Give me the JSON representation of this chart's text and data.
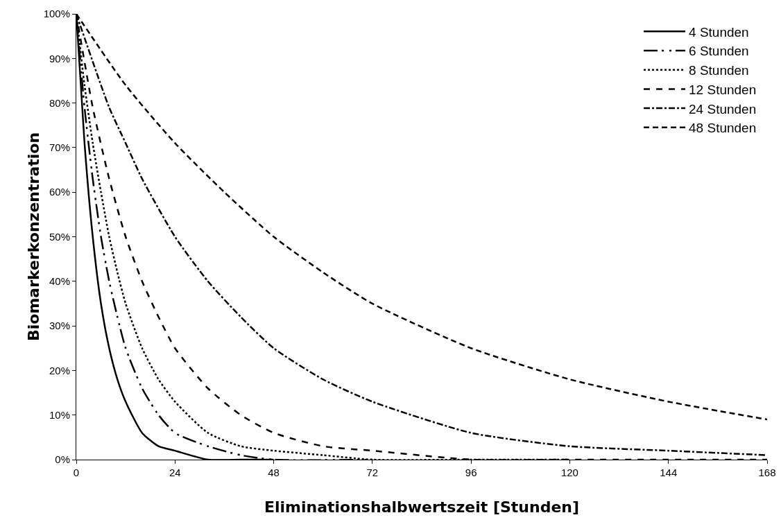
{
  "chart_data": {
    "type": "line",
    "xlabel": "Eliminationshalbwertszeit [Stunden]",
    "ylabel": "Biomarkerkonzentration",
    "series": [
      {
        "name": "4 Stunden",
        "color": "#000000",
        "line_style": "solid",
        "x": [
          0,
          2,
          4,
          6,
          8,
          10,
          12,
          16,
          20,
          24,
          32,
          40,
          48
        ],
        "values": [
          100,
          71,
          50,
          35,
          25,
          18,
          13,
          6,
          3,
          2,
          0,
          0,
          0
        ]
      },
      {
        "name": "6 Stunden",
        "color": "#000000",
        "line_style": "longdashdotdot",
        "x": [
          0,
          2,
          4,
          6,
          8,
          10,
          12,
          16,
          20,
          24,
          32,
          40,
          48,
          72
        ],
        "values": [
          100,
          79,
          63,
          50,
          40,
          32,
          25,
          16,
          10,
          6,
          3,
          1,
          0,
          0
        ]
      },
      {
        "name": "8 Stunden",
        "color": "#000000",
        "line_style": "dotted",
        "x": [
          0,
          2,
          4,
          6,
          8,
          10,
          12,
          16,
          20,
          24,
          32,
          40,
          48,
          60,
          72,
          96,
          120
        ],
        "values": [
          100,
          84,
          71,
          60,
          50,
          42,
          35,
          25,
          18,
          13,
          6,
          3,
          2,
          1,
          0,
          0,
          0
        ]
      },
      {
        "name": "12 Stunden",
        "color": "#000000",
        "line_style": "dashed",
        "x": [
          0,
          4,
          8,
          12,
          16,
          20,
          24,
          32,
          40,
          48,
          60,
          72,
          96,
          120,
          168
        ],
        "values": [
          100,
          79,
          63,
          50,
          40,
          32,
          25,
          16,
          10,
          6,
          3,
          2,
          0,
          0,
          0
        ]
      },
      {
        "name": "24 Stunden",
        "color": "#000000",
        "line_style": "dashdot",
        "x": [
          0,
          8,
          12,
          16,
          24,
          32,
          40,
          48,
          60,
          72,
          96,
          120,
          144,
          168
        ],
        "values": [
          100,
          79,
          71,
          63,
          50,
          40,
          32,
          25,
          18,
          13,
          6,
          3,
          2,
          1
        ]
      },
      {
        "name": "48 Stunden",
        "color": "#000000",
        "line_style": "shortdash",
        "x": [
          0,
          12,
          24,
          36,
          48,
          60,
          72,
          96,
          120,
          144,
          168
        ],
        "values": [
          100,
          84,
          71,
          60,
          50,
          42,
          35,
          25,
          18,
          13,
          9
        ]
      }
    ],
    "xlim": [
      0,
      168
    ],
    "xticks": [
      0,
      24,
      48,
      72,
      96,
      120,
      144,
      168
    ],
    "ylim": [
      0,
      100
    ],
    "yticks": [
      {
        "value": 0,
        "label": "0%"
      },
      {
        "value": 10,
        "label": "10%"
      },
      {
        "value": 20,
        "label": "20%"
      },
      {
        "value": 30,
        "label": "30%"
      },
      {
        "value": 40,
        "label": "40%"
      },
      {
        "value": 50,
        "label": "50%"
      },
      {
        "value": 60,
        "label": "60%"
      },
      {
        "value": 70,
        "label": "70%"
      },
      {
        "value": 80,
        "label": "80%"
      },
      {
        "value": 90,
        "label": "90%"
      },
      {
        "value": 100,
        "label": "100%"
      }
    ],
    "grid": false,
    "legend": "top right",
    "marker": "none"
  }
}
